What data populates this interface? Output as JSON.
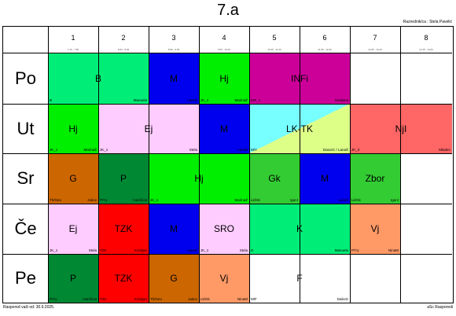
{
  "title": "7.a",
  "class_teacher": "Razrednik/ca : Stela Pavelić",
  "periods": [
    {
      "num": "1",
      "time": "7:10 - 7:55"
    },
    {
      "num": "2",
      "time": "8:00 - 8:45"
    },
    {
      "num": "3",
      "time": "8:50 - 9:35"
    },
    {
      "num": "4",
      "time": "9:55 - 10:40"
    },
    {
      "num": "5",
      "time": "10:45 - 11:30"
    },
    {
      "num": "6",
      "time": "11:35 - 12:20"
    },
    {
      "num": "7",
      "time": "12:25 - 13:10"
    },
    {
      "num": "8",
      "time": "13:15 - 14:00"
    }
  ],
  "days": [
    "Po",
    "Ut",
    "Sr",
    "Če",
    "Pe"
  ],
  "lessons": [
    {
      "subject": "B",
      "group": "B",
      "teacher": "Manuela",
      "color": "#00ee77"
    },
    {
      "subject": "M",
      "group": "",
      "teacher": "LanaŠ",
      "color": "#0000ee"
    },
    {
      "subject": "Hj",
      "group": "JK_1",
      "teacher": "MarinaŽ",
      "color": "#00ee00"
    },
    {
      "subject": "INFi",
      "group": "INF_1",
      "teacher": "Smiljana",
      "color": "#cc0099"
    },
    {
      "subject": "Hj",
      "group": "JK_1",
      "teacher": "MarinaŽ",
      "color": "#00ee00"
    },
    {
      "subject": "Ej",
      "group": "JK_1",
      "teacher": "Stela",
      "color": "#ffccff"
    },
    {
      "subject": "M",
      "group": "",
      "teacher": "LanaŠ",
      "color": "#0000ee"
    },
    {
      "subject": "LK-TK",
      "group": "M/Y",
      "teacher": "DavorC / LanaŠ",
      "color": "#77ffff",
      "color2": "#ddff88"
    },
    {
      "subject": "NjI",
      "group": "JK_3",
      "teacher": "Mladen",
      "color": "#ff6666"
    },
    {
      "subject": "G",
      "group": "Th/Geo",
      "teacher": "Jutice",
      "color": "#cc6600"
    },
    {
      "subject": "P",
      "group": "P/Yy",
      "teacher": "IvančicaI",
      "color": "#008833"
    },
    {
      "subject": "Hj",
      "group": "JK_1",
      "teacher": "MarinaŽ",
      "color": "#00ee00"
    },
    {
      "subject": "Gk",
      "group": "Lk/Gk",
      "teacher": "IgorJ",
      "color": "#33cc33"
    },
    {
      "subject": "M",
      "group": "",
      "teacher": "LanaŠ",
      "color": "#0000ee"
    },
    {
      "subject": "Zbor",
      "group": "Lk/Gk",
      "teacher": "IgorJ",
      "color": "#33cc33"
    },
    {
      "subject": "Ej",
      "group": "JK_1",
      "teacher": "Stela",
      "color": "#ffccff"
    },
    {
      "subject": "TZK",
      "group": "TZK",
      "teacher": "Kristijan",
      "color": "#ff0000"
    },
    {
      "subject": "M",
      "group": "",
      "teacher": "LanaŠ",
      "color": "#0000ee"
    },
    {
      "subject": "SRO",
      "group": "JK_1",
      "teacher": "Stela",
      "color": "#ffccff"
    },
    {
      "subject": "K",
      "group": "G",
      "teacher": "Manuela",
      "color": "#00ee77"
    },
    {
      "subject": "Vj",
      "group": "P/Yy",
      "teacher": "NinaM",
      "color": "#ff9966"
    },
    {
      "subject": "P",
      "group": "P/Yy",
      "teacher": "IvančicaI",
      "color": "#008833"
    },
    {
      "subject": "TZK",
      "group": "TZK",
      "teacher": "Kristijan",
      "color": "#ff0000"
    },
    {
      "subject": "G",
      "group": "Th/Geo",
      "teacher": "Jutice",
      "color": "#cc6600"
    },
    {
      "subject": "Vj",
      "group": "Lk/Gk",
      "teacher": "NinaM",
      "color": "#ff9966"
    },
    {
      "subject": "F",
      "group": "M/F",
      "teacher": "DaboG",
      "color": "#ffffff"
    }
  ],
  "footer_left": "Raspored važi od: 30.9.2025.",
  "footer_right": "aSc Rasporedi"
}
